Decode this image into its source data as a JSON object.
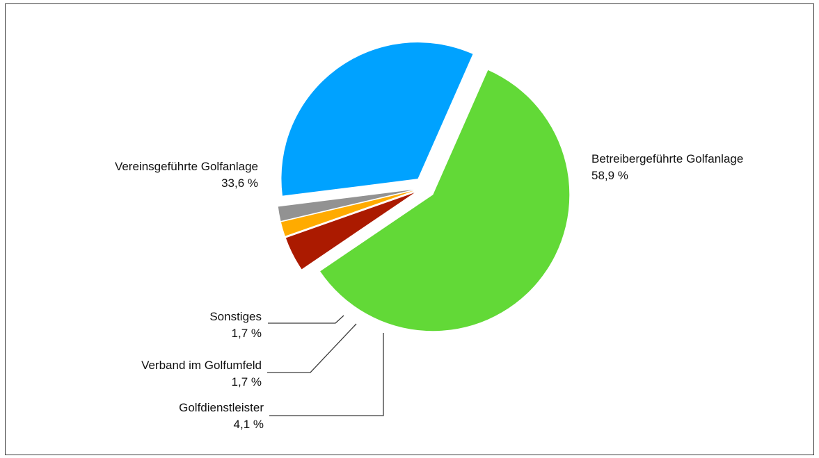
{
  "chart_data": {
    "type": "pie",
    "title": "",
    "slices": [
      {
        "label": "Betreibergeführte Golfanlage",
        "value": 58.9,
        "value_text": "58,9 %",
        "color": "#62d937",
        "exploded": true
      },
      {
        "label": "Golfdienstleister",
        "value": 4.1,
        "value_text": "4,1 %",
        "color": "#ab1a00",
        "exploded": true
      },
      {
        "label": "Verband im Golfumfeld",
        "value": 1.7,
        "value_text": "1,7 %",
        "color": "#ffab00",
        "exploded": true
      },
      {
        "label": "Sonstiges",
        "value": 1.7,
        "value_text": "1,7 %",
        "color": "#929292",
        "exploded": true
      },
      {
        "label": "Vereinsgeführte Golfanlage",
        "value": 33.6,
        "value_text": "33,6 %",
        "color": "#00a2ff",
        "exploded": true
      }
    ],
    "legend": "none",
    "label_placement": "outside with leader lines for small slices"
  }
}
